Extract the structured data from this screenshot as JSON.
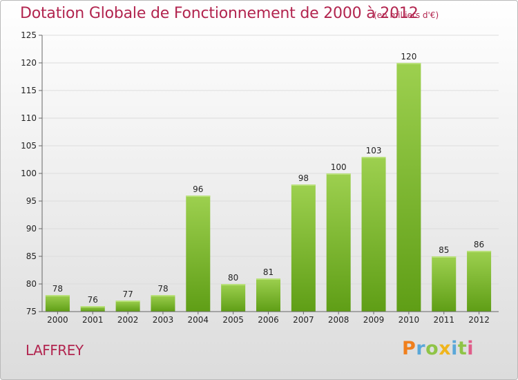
{
  "header": {
    "title": "Dotation Globale de Fonctionnement de 2000 à 2012",
    "unit": "(en milliers d'€)"
  },
  "footer": {
    "place": "LAFFREY",
    "logo_letters": [
      "P",
      "r",
      "o",
      "x",
      "i",
      "t",
      "i"
    ],
    "logo_colors": [
      "#f07f1c",
      "#5aa7d8",
      "#8fc447",
      "#f0b51c",
      "#5aa7d8",
      "#8fc447",
      "#e05d8a"
    ]
  },
  "colors": {
    "title": "#b2254f",
    "bar_top": "#9dd04f",
    "bar_bottom": "#5f9e16",
    "axis": "#666666",
    "grid": "#dcdcdc"
  },
  "chart_data": {
    "type": "bar",
    "categories": [
      "2000",
      "2001",
      "2002",
      "2003",
      "2004",
      "2005",
      "2006",
      "2007",
      "2008",
      "2009",
      "2010",
      "2011",
      "2012"
    ],
    "values": [
      78,
      76,
      77,
      78,
      96,
      80,
      81,
      98,
      100,
      103,
      120,
      85,
      86
    ],
    "title": "Dotation Globale de Fonctionnement de 2000 à 2012",
    "ylim": [
      75,
      125
    ],
    "yticks": [
      75,
      80,
      85,
      90,
      95,
      100,
      105,
      110,
      115,
      120,
      125
    ],
    "grid": true
  }
}
